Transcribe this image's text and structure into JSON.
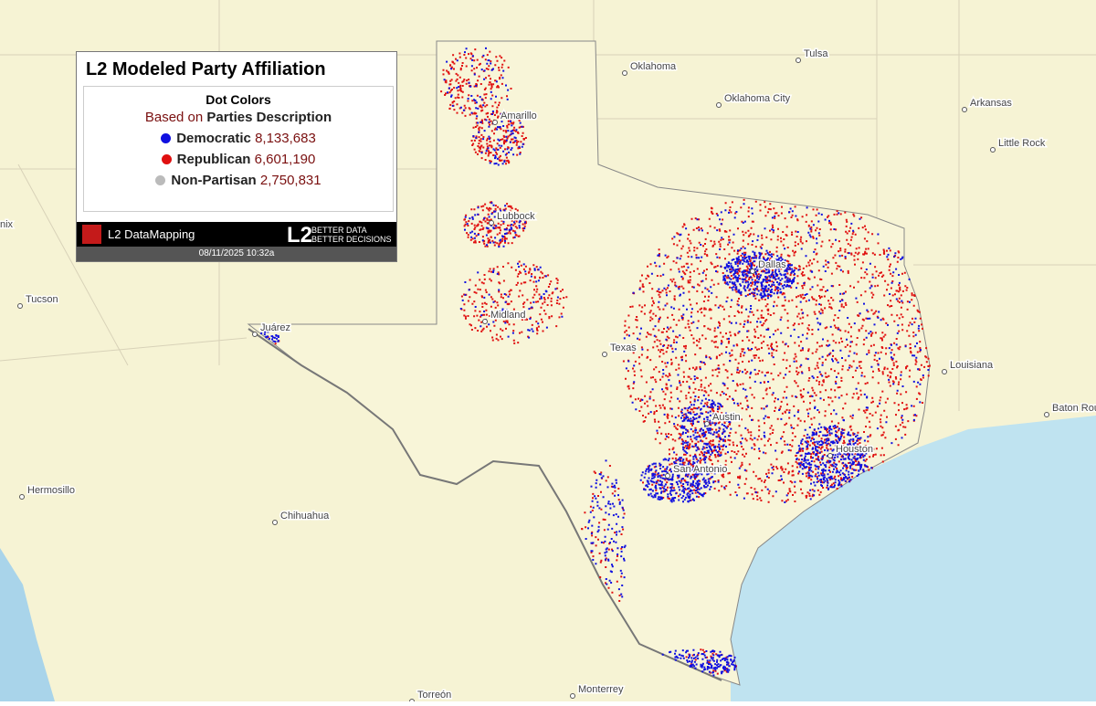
{
  "legend": {
    "title": "L2 Modeled Party Affiliation",
    "subtitle": "Dot Colors",
    "based_on": "Based on",
    "field": "Parties Description",
    "entries": [
      {
        "name": "Democratic",
        "count": "8,133,683",
        "color": "#1010e0"
      },
      {
        "name": "Republican",
        "count": "6,601,190",
        "color": "#e01010"
      },
      {
        "name": "Non-Partisan",
        "count": "2,750,831",
        "color": "#bbbbbb"
      }
    ]
  },
  "footer": {
    "brand": "L2 DataMapping",
    "logo": "L2",
    "tagline1": "BETTER DATA",
    "tagline2": "BETTER DECISIONS",
    "timestamp": "08/11/2025 10:32a"
  },
  "map": {
    "places": [
      "Oklahoma",
      "Tulsa",
      "Oklahoma City",
      "Arkansas",
      "Little Rock",
      "Amarillo",
      "Lubbock",
      "Midland",
      "Dallas",
      "Texas",
      "Austin",
      "San Antonio",
      "Houston",
      "Louisiana",
      "Baton Rouge",
      "Juárez",
      "Tucson",
      "Hermosillo",
      "Chihuahua",
      "Torreón",
      "Monterrey",
      "nix"
    ]
  }
}
